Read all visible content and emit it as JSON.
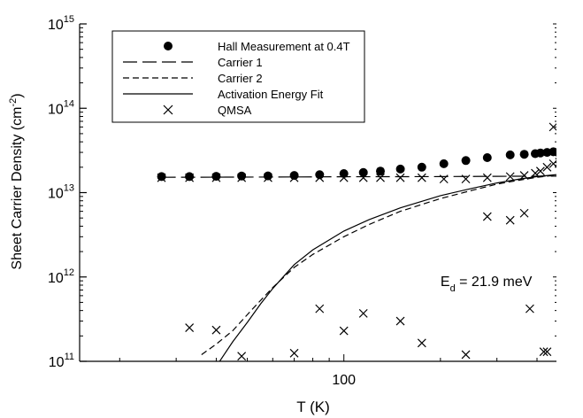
{
  "chart_data": {
    "type": "scatter",
    "title": "",
    "xlabel": "T (K)",
    "ylabel": "Sheet Carrier Density (cm",
    "ylabel_sup": "-2",
    "ylabel_close": ")",
    "x_scale": "log",
    "y_scale": "log",
    "xlim": [
      15,
      460
    ],
    "ylim": [
      100000000000.0,
      1000000000000000.0
    ],
    "x_tick_labels": [
      {
        "value": 100,
        "label": "100"
      }
    ],
    "y_tick_labels": [
      {
        "value": 100000000000.0,
        "base": "10",
        "exp": "11"
      },
      {
        "value": 1000000000000.0,
        "base": "10",
        "exp": "12"
      },
      {
        "value": 10000000000000.0,
        "base": "10",
        "exp": "13"
      },
      {
        "value": 100000000000000.0,
        "base": "10",
        "exp": "14"
      },
      {
        "value": 1000000000000000.0,
        "base": "10",
        "exp": "15"
      }
    ],
    "grid": false,
    "legend_position": "top-left",
    "annotation": {
      "main": "E",
      "sub": "d",
      "rest": " = 21.9 meV",
      "x": 200,
      "y": 780000000000.0
    },
    "series": [
      {
        "name": "Hall Measurement at 0.4T",
        "kind": "filled-circle",
        "x": [
          27,
          33,
          40,
          48,
          58,
          70,
          84,
          100,
          115,
          130,
          150,
          175,
          205,
          240,
          280,
          330,
          365,
          395,
          410,
          430,
          450,
          470,
          490
        ],
        "y": [
          15500000000000.0,
          15500000000000.0,
          15600000000000.0,
          15700000000000.0,
          15800000000000.0,
          16000000000000.0,
          16300000000000.0,
          16800000000000.0,
          17300000000000.0,
          18000000000000.0,
          19000000000000.0,
          20000000000000.0,
          22000000000000.0,
          24000000000000.0,
          26000000000000.0,
          28000000000000.0,
          28500000000000.0,
          29000000000000.0,
          29500000000000.0,
          30000000000000.0,
          30500000000000.0,
          31000000000000.0,
          32000000000000.0
        ]
      },
      {
        "name": "Carrier 1",
        "kind": "long-dash",
        "x": [
          27,
          60,
          100,
          200,
          300,
          490
        ],
        "y": [
          15200000000000.0,
          15300000000000.0,
          15400000000000.0,
          15500000000000.0,
          15600000000000.0,
          15700000000000.0
        ]
      },
      {
        "name": "Carrier 2",
        "kind": "short-dash",
        "x": [
          36,
          40,
          45,
          52,
          60,
          70,
          80,
          100,
          120,
          150,
          200,
          250,
          300,
          350,
          400,
          450,
          490
        ],
        "y": [
          120000000000.0,
          160000000000.0,
          230000000000.0,
          420000000000.0,
          750000000000.0,
          1300000000000.0,
          1850000000000.0,
          3000000000000.0,
          4200000000000.0,
          6000000000000.0,
          8500000000000.0,
          10600000000000.0,
          12600000000000.0,
          14000000000000.0,
          15200000000000.0,
          16000000000000.0,
          16600000000000.0
        ]
      },
      {
        "name": "Activation Energy Fit",
        "kind": "solid",
        "x": [
          41,
          45,
          50,
          55,
          60,
          70,
          80,
          100,
          120,
          150,
          200,
          250,
          300,
          350,
          400,
          450,
          490
        ],
        "y": [
          100000000000.0,
          170000000000.0,
          290000000000.0,
          480000000000.0,
          730000000000.0,
          1400000000000.0,
          2100000000000.0,
          3500000000000.0,
          4800000000000.0,
          6600000000000.0,
          9200000000000.0,
          11200000000000.0,
          13000000000000.0,
          14400000000000.0,
          15500000000000.0,
          16200000000000.0,
          16700000000000.0
        ]
      },
      {
        "name": "QMSA",
        "kind": "cross",
        "x": [
          27,
          33,
          40,
          48,
          58,
          70,
          84,
          100,
          115,
          130,
          150,
          175,
          205,
          240,
          280,
          330,
          365,
          395,
          410,
          430,
          450,
          470,
          490,
          33,
          40,
          48,
          70,
          84,
          100,
          115,
          150,
          175,
          240,
          280,
          330,
          365,
          380,
          420,
          430,
          450,
          470,
          490
        ],
        "y": [
          15000000000000.0,
          15000000000000.0,
          15000000000000.0,
          15000000000000.0,
          15000000000000.0,
          15000000000000.0,
          15000000000000.0,
          15000000000000.0,
          15000000000000.0,
          15000000000000.0,
          15000000000000.0,
          15000000000000.0,
          14500000000000.0,
          14500000000000.0,
          15000000000000.0,
          15500000000000.0,
          16000000000000.0,
          17000000000000.0,
          18000000000000.0,
          20000000000000.0,
          22000000000000.0,
          23000000000000.0,
          20000000000000.0,
          250000000000.0,
          235000000000.0,
          115000000000.0,
          125000000000.0,
          420000000000.0,
          230000000000.0,
          370000000000.0,
          300000000000.0,
          165000000000.0,
          120000000000.0,
          5200000000000.0,
          4700000000000.0,
          5700000000000.0,
          420000000000.0,
          130000000000.0,
          130000000000.0,
          60000000000000.0,
          25000000000000.0,
          52000000000000.0
        ]
      }
    ]
  }
}
